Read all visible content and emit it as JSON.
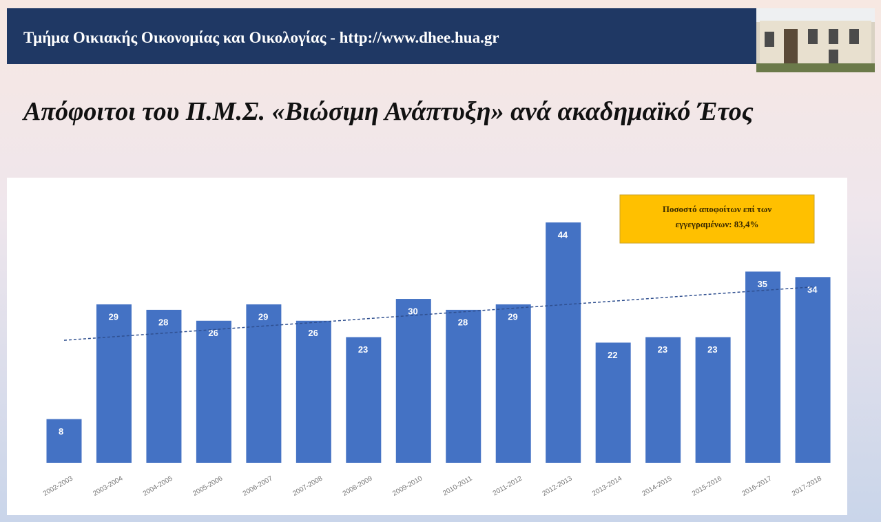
{
  "header": {
    "title": "Τμήμα Οικιακής Οικονομίας και Οικολογίας - http://www.dhee.hua.gr"
  },
  "slide": {
    "title": "Απόφοιτοι του Π.Μ.Σ. «Βιώσιμη Ανάπτυξη» ανά ακαδημαϊκό Έτος"
  },
  "chart_data": {
    "type": "bar",
    "categories": [
      "2002-2003",
      "2003-2004",
      "2004-2005",
      "2005-2006",
      "2006-2007",
      "2007-2008",
      "2008-2009",
      "2009-2010",
      "2010-2011",
      "2011-2012",
      "2012-2013",
      "2013-2014",
      "2014-2015",
      "2015-2016",
      "2016-2017",
      "2017-2018"
    ],
    "values": [
      8,
      29,
      28,
      26,
      29,
      26,
      23,
      30,
      28,
      29,
      44,
      22,
      23,
      23,
      35,
      34
    ],
    "color": "#4472c4",
    "trendline": true,
    "annotation": [
      "Ποσοστό αποφοίτων επί των",
      "εγγεγραμένων: 83,4%"
    ]
  }
}
